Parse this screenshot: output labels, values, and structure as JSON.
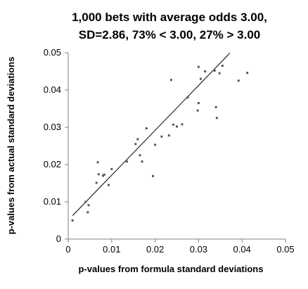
{
  "chart_data": {
    "type": "scatter",
    "title": "1,000 bets with average odds 3.00,",
    "subtitle": "SD=2.86, 73% < 3.00, 27% > 3.00",
    "xlabel": "p-values from formula standard deviations",
    "ylabel": "p-values from actual standard deviations",
    "xlim": [
      0,
      0.05
    ],
    "ylim": [
      0,
      0.05
    ],
    "x_ticks": [
      "0",
      "0.01",
      "0.02",
      "0.03",
      "0.04",
      "0.05"
    ],
    "y_ticks": [
      "0",
      "0.01",
      "0.02",
      "0.03",
      "0.04",
      "0.05"
    ],
    "grid": false,
    "legend": "none",
    "colors": {
      "points": "#595959",
      "trendline": "#000000",
      "axis": "#808080"
    },
    "points": [
      {
        "x": 0.001,
        "y": 0.005
      },
      {
        "x": 0.004,
        "y": 0.01
      },
      {
        "x": 0.0045,
        "y": 0.0072
      },
      {
        "x": 0.0047,
        "y": 0.0091
      },
      {
        "x": 0.0065,
        "y": 0.0151
      },
      {
        "x": 0.0068,
        "y": 0.0206
      },
      {
        "x": 0.007,
        "y": 0.0174
      },
      {
        "x": 0.008,
        "y": 0.017
      },
      {
        "x": 0.0083,
        "y": 0.0173
      },
      {
        "x": 0.0093,
        "y": 0.0145
      },
      {
        "x": 0.01,
        "y": 0.0188
      },
      {
        "x": 0.0135,
        "y": 0.0208
      },
      {
        "x": 0.0155,
        "y": 0.0255
      },
      {
        "x": 0.016,
        "y": 0.0268
      },
      {
        "x": 0.0165,
        "y": 0.0225
      },
      {
        "x": 0.017,
        "y": 0.0208
      },
      {
        "x": 0.018,
        "y": 0.0297
      },
      {
        "x": 0.0195,
        "y": 0.0169
      },
      {
        "x": 0.02,
        "y": 0.0253
      },
      {
        "x": 0.0215,
        "y": 0.0275
      },
      {
        "x": 0.0232,
        "y": 0.0278
      },
      {
        "x": 0.0237,
        "y": 0.0427
      },
      {
        "x": 0.0242,
        "y": 0.0307
      },
      {
        "x": 0.025,
        "y": 0.0302
      },
      {
        "x": 0.0262,
        "y": 0.0308
      },
      {
        "x": 0.0275,
        "y": 0.038
      },
      {
        "x": 0.0298,
        "y": 0.0345
      },
      {
        "x": 0.03,
        "y": 0.0365
      },
      {
        "x": 0.03,
        "y": 0.0462
      },
      {
        "x": 0.0305,
        "y": 0.043
      },
      {
        "x": 0.0315,
        "y": 0.045
      },
      {
        "x": 0.0337,
        "y": 0.0452
      },
      {
        "x": 0.034,
        "y": 0.0354
      },
      {
        "x": 0.0342,
        "y": 0.0325
      },
      {
        "x": 0.0348,
        "y": 0.0445
      },
      {
        "x": 0.0355,
        "y": 0.0465
      },
      {
        "x": 0.0392,
        "y": 0.0425
      },
      {
        "x": 0.0412,
        "y": 0.0446
      }
    ],
    "trendline": {
      "x": [
        0.001,
        0.0372
      ],
      "y": [
        0.0063,
        0.0499
      ]
    }
  }
}
